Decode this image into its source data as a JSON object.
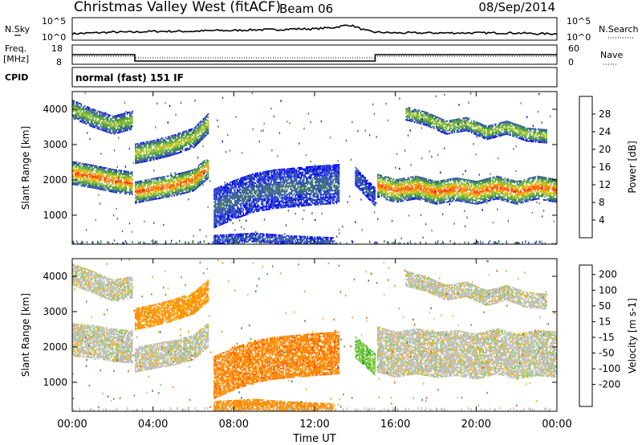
{
  "header": {
    "title": "Christmas Valley West (fitACF)",
    "beam": "Beam 06",
    "date": "08/Sep/2014"
  },
  "left_labels": {
    "nsky": "N.Sky",
    "freq": "Freq.",
    "freq_unit": "[MHz]",
    "cpid": "CPID"
  },
  "right_labels": {
    "nsearch": "N.Search",
    "nave": "Nave"
  },
  "cpid_text": "normal (fast) 151 IF",
  "colors": {
    "power_scale": [
      "#0000ff",
      "#2f4fb4",
      "#3c7a5a",
      "#4e9e3e",
      "#7fb830",
      "#c8c81e",
      "#f5a000",
      "#ff6a00",
      "#ff2a00",
      "#e00000"
    ],
    "velocity_scale": [
      "#ff0000",
      "#ff4a00",
      "#ff8a00",
      "#ffb000",
      "#bebebe",
      "#bebebe",
      "#7ed040",
      "#2e9e2e",
      "#1e5fb0",
      "#0000e0"
    ]
  },
  "chart_data": [
    {
      "type": "line",
      "panel": "noise",
      "ylabels_left": [
        "10^5",
        "10^0"
      ],
      "ylabels_right": [
        "10^5",
        "10^0"
      ],
      "x_hours": [
        0,
        1,
        2,
        3,
        4,
        5,
        6,
        7,
        8,
        9,
        10,
        11,
        12,
        13,
        13.7,
        14,
        14.5,
        15,
        16,
        17,
        18,
        19,
        20,
        21,
        22,
        23,
        24
      ],
      "series": [
        {
          "values": [
            0.2,
            0.25,
            0.3,
            0.3,
            0.35,
            0.35,
            0.35,
            0.4,
            0.4,
            0.45,
            0.45,
            0.5,
            0.5,
            0.6,
            0.75,
            0.65,
            0.4,
            0.3,
            0.25,
            0.25,
            0.25,
            0.25,
            0.25,
            0.25,
            0.25,
            0.2,
            0.2
          ]
        }
      ]
    },
    {
      "type": "line",
      "panel": "frequency",
      "yticks_left": [
        "18",
        "8"
      ],
      "yticks_right": [
        "60",
        "0"
      ],
      "series": [
        {
          "x": [
            0,
            3.1,
            3.1,
            15,
            15,
            24
          ],
          "values": [
            13,
            13,
            9,
            9,
            13,
            13
          ]
        },
        {
          "x": [
            0,
            3.1,
            3.1,
            15,
            15,
            24
          ],
          "values": [
            24,
            24,
            18,
            18,
            24,
            24
          ]
        }
      ]
    },
    {
      "type": "heatmap",
      "panel": "power",
      "ylabel": "Slant Range [km]",
      "zlabel": "Power [dB]",
      "yticks": [
        1000,
        2000,
        3000,
        4000
      ],
      "ylim": [
        180,
        4500
      ],
      "cbar_ticks": [
        4,
        8,
        12,
        16,
        20,
        24,
        28
      ],
      "zlim": [
        0,
        32
      ],
      "bands": [
        {
          "x": [
            0,
            1,
            2,
            3
          ],
          "y": [
            2200,
            2100,
            1980,
            1900
          ],
          "width": 320,
          "value": 26
        },
        {
          "x": [
            0,
            1,
            2,
            3
          ],
          "y": [
            4000,
            3750,
            3550,
            3700
          ],
          "width": 250,
          "value": 16
        },
        {
          "x": [
            3.1,
            4,
            5,
            6,
            6.7
          ],
          "y": [
            1650,
            1750,
            1850,
            2000,
            2350
          ],
          "width": 300,
          "value": 26
        },
        {
          "x": [
            3.1,
            4,
            5,
            6,
            6.7
          ],
          "y": [
            2750,
            2850,
            3000,
            3200,
            3600
          ],
          "width": 280,
          "value": 18
        },
        {
          "x": [
            7,
            8,
            9,
            10,
            11,
            12,
            13.2
          ],
          "y": [
            1200,
            1450,
            1650,
            1750,
            1800,
            1850,
            1900
          ],
          "width": 550,
          "value": 7
        },
        {
          "x": [
            14,
            14.5,
            15
          ],
          "y": [
            2100,
            1800,
            1500
          ],
          "width": 250,
          "value": 6
        },
        {
          "x": [
            15.1,
            16,
            17,
            18,
            19,
            20,
            21,
            22,
            23,
            24
          ],
          "y": [
            1850,
            1700,
            1800,
            1650,
            1750,
            1650,
            1800,
            1650,
            1800,
            1700
          ],
          "width": 330,
          "value": 26
        },
        {
          "x": [
            16.5,
            17.5,
            18.5,
            19.5,
            20.5,
            21.5,
            22.5,
            23.5
          ],
          "y": [
            3900,
            3750,
            3500,
            3600,
            3350,
            3500,
            3300,
            3250
          ],
          "width": 200,
          "value": 17
        },
        {
          "x": [
            7,
            9,
            11,
            13
          ],
          "y": [
            320,
            380,
            300,
            250
          ],
          "width": 120,
          "value": 6
        }
      ]
    },
    {
      "type": "heatmap",
      "panel": "velocity",
      "ylabel": "Slant Range [km]",
      "zlabel": "Velocity [m s-1]",
      "yticks": [
        1000,
        2000,
        3000,
        4000
      ],
      "ylim": [
        180,
        4500
      ],
      "cbar_ticks": [
        200,
        100,
        50,
        15,
        -15,
        -50,
        -100,
        -200
      ],
      "xlabel": "Time UT",
      "xticks": [
        "00:00",
        "04:00",
        "08:00",
        "12:00",
        "16:00",
        "20:00",
        "00:00"
      ],
      "xlim": [
        0,
        24
      ],
      "bands": [
        {
          "x": [
            0,
            1,
            2,
            3
          ],
          "y": [
            2200,
            2150,
            2050,
            2000
          ],
          "width": 450,
          "value": 0
        },
        {
          "x": [
            0,
            1,
            2,
            3
          ],
          "y": [
            4050,
            3850,
            3600,
            3700
          ],
          "width": 300,
          "value": 0
        },
        {
          "x": [
            3.1,
            4,
            5,
            6,
            6.7
          ],
          "y": [
            1650,
            1750,
            1850,
            2000,
            2350
          ],
          "width": 350,
          "value": 0
        },
        {
          "x": [
            3.1,
            4,
            5,
            6,
            6.7
          ],
          "y": [
            2800,
            2900,
            3050,
            3250,
            3600
          ],
          "width": 300,
          "value": -40
        },
        {
          "x": [
            7,
            8,
            9,
            10,
            11,
            12,
            13.2
          ],
          "y": [
            1150,
            1400,
            1600,
            1700,
            1750,
            1800,
            1850
          ],
          "width": 600,
          "value": -60
        },
        {
          "x": [
            14,
            14.5,
            15
          ],
          "y": [
            2000,
            1750,
            1500
          ],
          "width": 300,
          "value": 40
        },
        {
          "x": [
            15.1,
            16,
            17,
            18,
            19,
            20,
            21,
            22,
            23,
            24
          ],
          "y": [
            1950,
            1800,
            1900,
            1800,
            1850,
            1750,
            1900,
            1750,
            1850,
            1800
          ],
          "width": 650,
          "value": 0
        },
        {
          "x": [
            16.5,
            17.5,
            18.5,
            19.5,
            20.5,
            21.5,
            22.5,
            23.5
          ],
          "y": [
            3950,
            3800,
            3550,
            3650,
            3400,
            3550,
            3350,
            3300
          ],
          "width": 220,
          "value": 0
        },
        {
          "x": [
            7,
            9,
            11,
            13
          ],
          "y": [
            320,
            380,
            300,
            250
          ],
          "width": 140,
          "value": -50
        }
      ]
    }
  ]
}
